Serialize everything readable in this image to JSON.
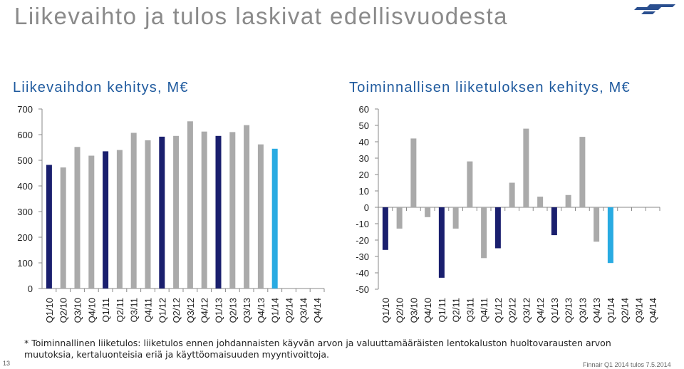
{
  "page": {
    "title": "Liikevaihto ja tulos laskivat edellisvuodesta",
    "note": "* Toiminnallinen liiketulos: liiketulos ennen johdannaisten käyvän arvon ja valuuttamääräisten lentokaluston huoltovarausten arvon muutoksia, kertaluonteisia eriä ja käyttöomaisuuden myyntivoittoja.",
    "page_number": "13",
    "footer": "Finnair Q1 2014 tulos 7.5.2014",
    "logo_icon": "finnair-logo-icon"
  },
  "colors": {
    "highlight": "#1a1f6e",
    "regular": "#aaaaaa",
    "current": "#29abe2",
    "title": "#8a8a8a",
    "subtitle": "#1f5a9e"
  },
  "chart_data": [
    {
      "type": "bar",
      "title": "Liikevaihdon kehitys, M€",
      "categories": [
        "Q1/10",
        "Q2/10",
        "Q3/10",
        "Q4/10",
        "Q1/11",
        "Q2/11",
        "Q3/11",
        "Q4/11",
        "Q1/12",
        "Q2/12",
        "Q3/12",
        "Q4/12",
        "Q1/13",
        "Q2/13",
        "Q3/13",
        "Q4/13",
        "Q1/14",
        "Q2/14",
        "Q3/14",
        "Q4/14"
      ],
      "values": [
        482,
        472,
        552,
        518,
        535,
        540,
        607,
        578,
        592,
        595,
        652,
        612,
        595,
        610,
        637,
        562,
        545,
        null,
        null,
        null
      ],
      "highlight": [
        "#1a1f6e",
        "#aaaaaa",
        "#aaaaaa",
        "#aaaaaa",
        "#1a1f6e",
        "#aaaaaa",
        "#aaaaaa",
        "#aaaaaa",
        "#1a1f6e",
        "#aaaaaa",
        "#aaaaaa",
        "#aaaaaa",
        "#1a1f6e",
        "#aaaaaa",
        "#aaaaaa",
        "#aaaaaa",
        "#29abe2",
        null,
        null,
        null
      ],
      "ylim": [
        0,
        700
      ],
      "yticks": [
        0,
        100,
        200,
        300,
        400,
        500,
        600,
        700
      ],
      "grid": false
    },
    {
      "type": "bar",
      "title": "Toiminnallisen liiketuloksen kehitys, M€",
      "categories": [
        "Q1/10",
        "Q2/10",
        "Q3/10",
        "Q4/10",
        "Q1/11",
        "Q2/11",
        "Q3/11",
        "Q4/11",
        "Q1/12",
        "Q2/12",
        "Q3/12",
        "Q4/12",
        "Q1/13",
        "Q2/13",
        "Q3/13",
        "Q4/13",
        "Q1/14",
        "Q2/14",
        "Q3/14",
        "Q4/14"
      ],
      "values": [
        -26,
        -13,
        42,
        -6,
        -43,
        -13,
        28,
        -31,
        -25,
        15,
        48,
        6.5,
        -17,
        7.5,
        43,
        -21,
        -34,
        null,
        null,
        null
      ],
      "highlight": [
        "#1a1f6e",
        "#aaaaaa",
        "#aaaaaa",
        "#aaaaaa",
        "#1a1f6e",
        "#aaaaaa",
        "#aaaaaa",
        "#aaaaaa",
        "#1a1f6e",
        "#aaaaaa",
        "#aaaaaa",
        "#aaaaaa",
        "#1a1f6e",
        "#aaaaaa",
        "#aaaaaa",
        "#aaaaaa",
        "#29abe2",
        null,
        null,
        null
      ],
      "ylim": [
        -50,
        60
      ],
      "yticks": [
        -50,
        -40,
        -30,
        -20,
        -10,
        0,
        10,
        20,
        30,
        40,
        50,
        60
      ],
      "grid": false
    }
  ]
}
